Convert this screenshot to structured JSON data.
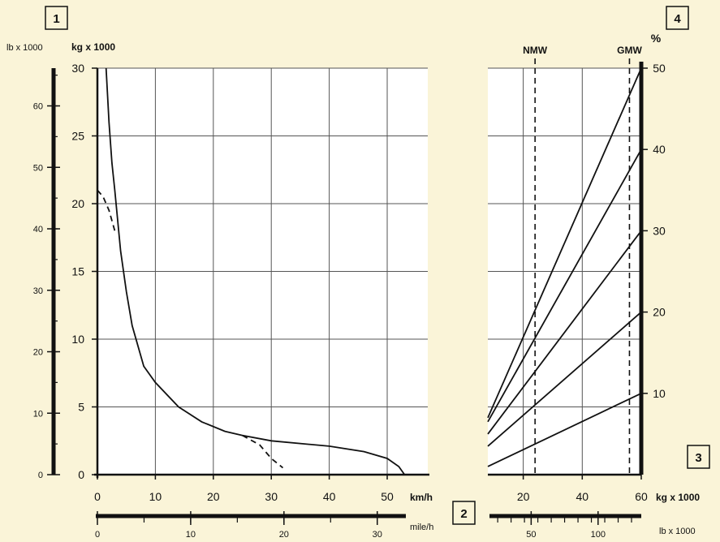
{
  "colors": {
    "background": "#faf4d8",
    "plot_area": "#ffffff",
    "lines": "#111111",
    "grid": "#555555"
  },
  "markers": [
    "1",
    "2",
    "3",
    "4"
  ],
  "chart_data": [
    {
      "type": "line",
      "marker": "1",
      "title": "",
      "xlabel": "km/h",
      "ylabel": "kg x 1000",
      "ylabel_secondary": "lb x 1000",
      "xlabel_secondary": "mile/h",
      "xlim": [
        0,
        57
      ],
      "ylim": [
        0,
        30
      ],
      "x_ticks": [
        0,
        10,
        20,
        30,
        40,
        50
      ],
      "y_ticks": [
        0,
        5,
        10,
        15,
        20,
        25,
        30
      ],
      "secondary_x_ticks": [
        0,
        10,
        20,
        30
      ],
      "secondary_y_ticks": [
        0,
        10,
        20,
        30,
        40,
        50,
        60
      ],
      "grid": true,
      "series": [
        {
          "style": "solid",
          "x": [
            1.5,
            2,
            2.5,
            3,
            4,
            5,
            6,
            8,
            10,
            14,
            18,
            22,
            25,
            30,
            40,
            46,
            50,
            52,
            53
          ],
          "y": [
            30,
            26,
            23,
            21,
            16.5,
            13.5,
            11,
            8,
            6.8,
            5,
            3.9,
            3.2,
            2.9,
            2.5,
            2.1,
            1.7,
            1.2,
            0.6,
            0
          ]
        },
        {
          "style": "dashed",
          "x": [
            0,
            1,
            2,
            3
          ],
          "y": [
            21,
            20.5,
            19.5,
            18
          ]
        },
        {
          "style": "dashed",
          "x": [
            25,
            28,
            30,
            32
          ],
          "y": [
            2.9,
            2.2,
            1.2,
            0.5
          ]
        }
      ]
    },
    {
      "type": "line",
      "marker": "4",
      "title": "",
      "xlabel": "kg x 1000",
      "ylabel": "%",
      "xlabel_secondary": "lb x 1000",
      "xlim": [
        8,
        60
      ],
      "ylim": [
        0,
        50
      ],
      "x_ticks": [
        20,
        40,
        60
      ],
      "y_ticks": [
        10,
        20,
        30,
        40,
        50
      ],
      "secondary_x_ticks": [
        50,
        100
      ],
      "reference_lines": [
        {
          "label": "NMW",
          "x": 24
        },
        {
          "label": "GMW",
          "x": 56
        }
      ],
      "grid": true,
      "series": [
        {
          "x": [
            8,
            60
          ],
          "y": [
            1,
            10
          ]
        },
        {
          "x": [
            8,
            60
          ],
          "y": [
            3.5,
            20
          ]
        },
        {
          "x": [
            8,
            60
          ],
          "y": [
            5,
            30
          ]
        },
        {
          "x": [
            8,
            60
          ],
          "y": [
            6.5,
            40
          ]
        },
        {
          "x": [
            8,
            60
          ],
          "y": [
            7,
            50
          ]
        }
      ]
    }
  ]
}
